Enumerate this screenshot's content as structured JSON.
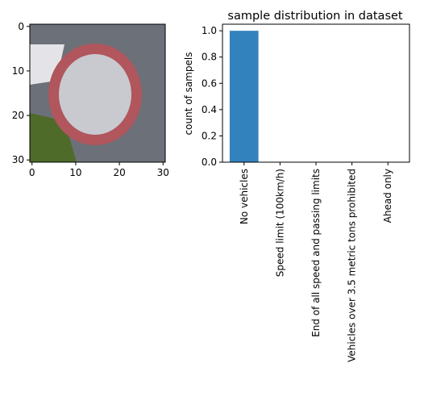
{
  "image_panel": {
    "xticks": [
      "0",
      "10",
      "20",
      "30"
    ],
    "yticks": [
      "0",
      "10",
      "20",
      "30"
    ],
    "colors": {
      "background_gray": "#6c7078",
      "ring_red": "#b0565c",
      "inner_gray": "#c9c9d0",
      "white_patch": "#e4e4e8",
      "grass_green": "#4e6b2a"
    }
  },
  "chart_data": {
    "type": "bar",
    "title": "sample distribution in dataset",
    "xlabel": "",
    "ylabel": "count of sampels",
    "categories": [
      "No vehicles",
      "Speed limit (100km/h)",
      "End of all speed and passing limits",
      "Vehicles over 3.5 metric tons prohibited",
      "Ahead only"
    ],
    "values": [
      1.0,
      0,
      0,
      0,
      0
    ],
    "ylim": [
      0,
      1.05
    ],
    "yticks": [
      "0.0",
      "0.2",
      "0.4",
      "0.6",
      "0.8",
      "1.0"
    ],
    "bar_color": "#3282be",
    "grid": false,
    "legend": "none"
  }
}
